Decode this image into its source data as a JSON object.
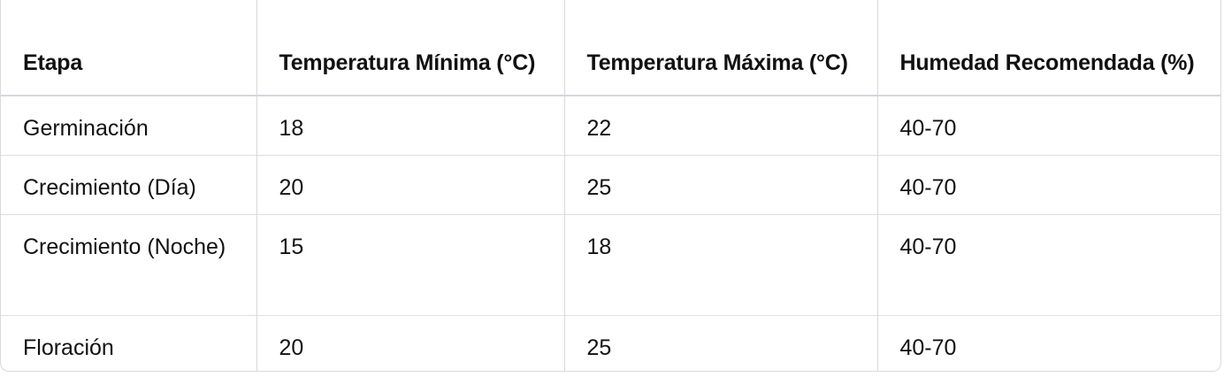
{
  "table": {
    "headers": [
      "Etapa",
      "Temperatura Mínima (°C)",
      "Temperatura Máxima (°C)",
      "Humedad Recomendada (%)"
    ],
    "rows": [
      [
        "Germinación",
        "18",
        "22",
        "40-70"
      ],
      [
        "Crecimiento (Día)",
        "20",
        "25",
        "40-70"
      ],
      [
        "Crecimiento (Noche)",
        "15",
        "18",
        "40-70"
      ],
      [
        "Floración",
        "20",
        "25",
        "40-70"
      ]
    ]
  }
}
